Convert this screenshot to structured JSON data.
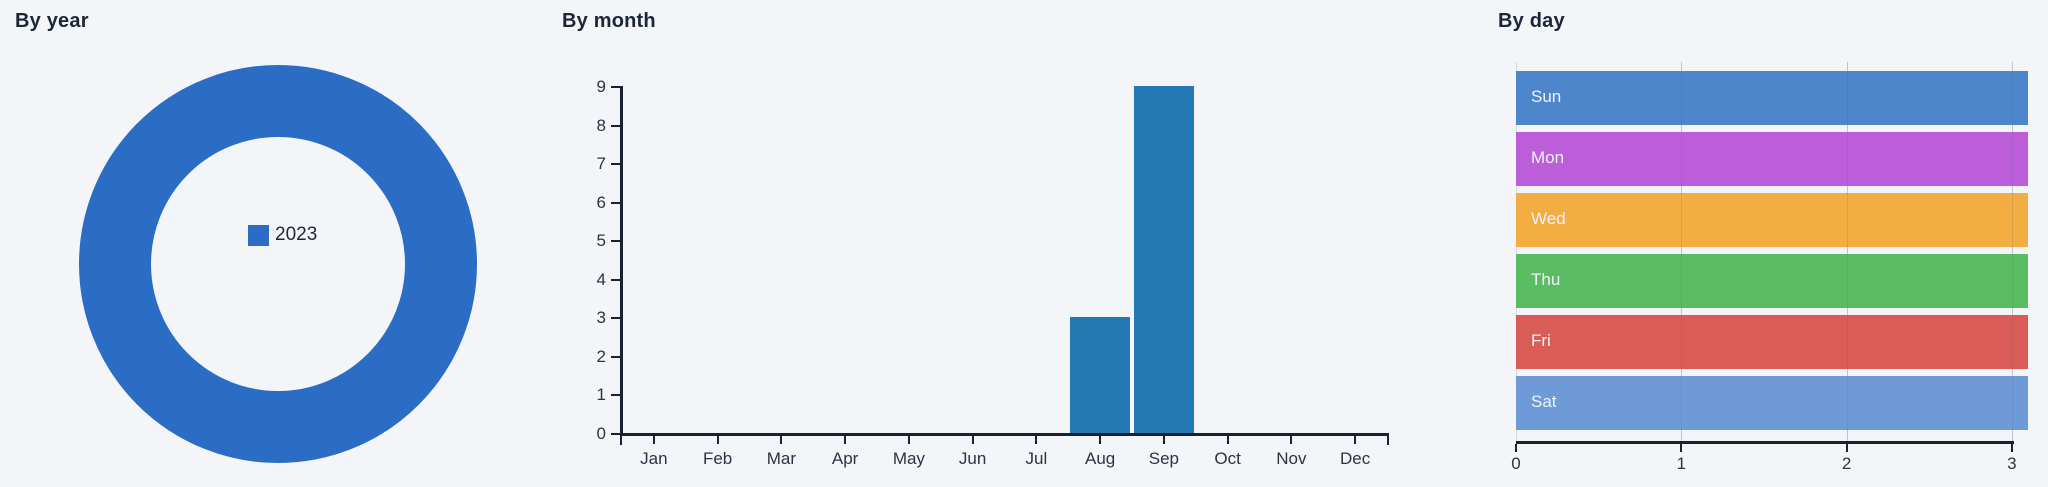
{
  "page": {
    "background": "#f3f5f9",
    "title_color": "#1c2636",
    "axis_color": "#1a2230"
  },
  "chart_data": [
    {
      "type": "pie",
      "subtype": "donut",
      "title": "By year",
      "labels": [
        "2023"
      ],
      "values": [
        1
      ],
      "colors": [
        "#2b6cc4"
      ],
      "legend": {
        "position": "center",
        "entries": [
          "2023"
        ]
      }
    },
    {
      "type": "bar",
      "title": "By month",
      "categories": [
        "Jan",
        "Feb",
        "Mar",
        "Apr",
        "May",
        "Jun",
        "Jul",
        "Aug",
        "Sep",
        "Oct",
        "Nov",
        "Dec"
      ],
      "values": [
        0,
        0,
        0,
        0,
        0,
        0,
        0,
        3,
        9,
        0,
        0,
        0
      ],
      "xlabel": "",
      "ylabel": "",
      "ylim": [
        0,
        9
      ],
      "yticks": [
        0,
        1,
        2,
        3,
        4,
        5,
        6,
        7,
        8,
        9
      ],
      "bar_color": "#2478b4",
      "grid": false
    },
    {
      "type": "bar",
      "orientation": "horizontal",
      "title": "By day",
      "categories": [
        "Sun",
        "Mon",
        "Wed",
        "Thu",
        "Fri",
        "Sat"
      ],
      "values": [
        3,
        3,
        3,
        3,
        3,
        3
      ],
      "xlim": [
        0,
        3.1
      ],
      "xticks": [
        0,
        1,
        2,
        3
      ],
      "colors": [
        "#4d86cb",
        "#bc5ed9",
        "#f4ad43",
        "#5abd64",
        "#da5c56",
        "#6f9ad8"
      ],
      "bar_label_position": "inside-left",
      "bar_label_color": "#eef3fa",
      "grid": true,
      "grid_color": "#d3d8e0"
    }
  ]
}
